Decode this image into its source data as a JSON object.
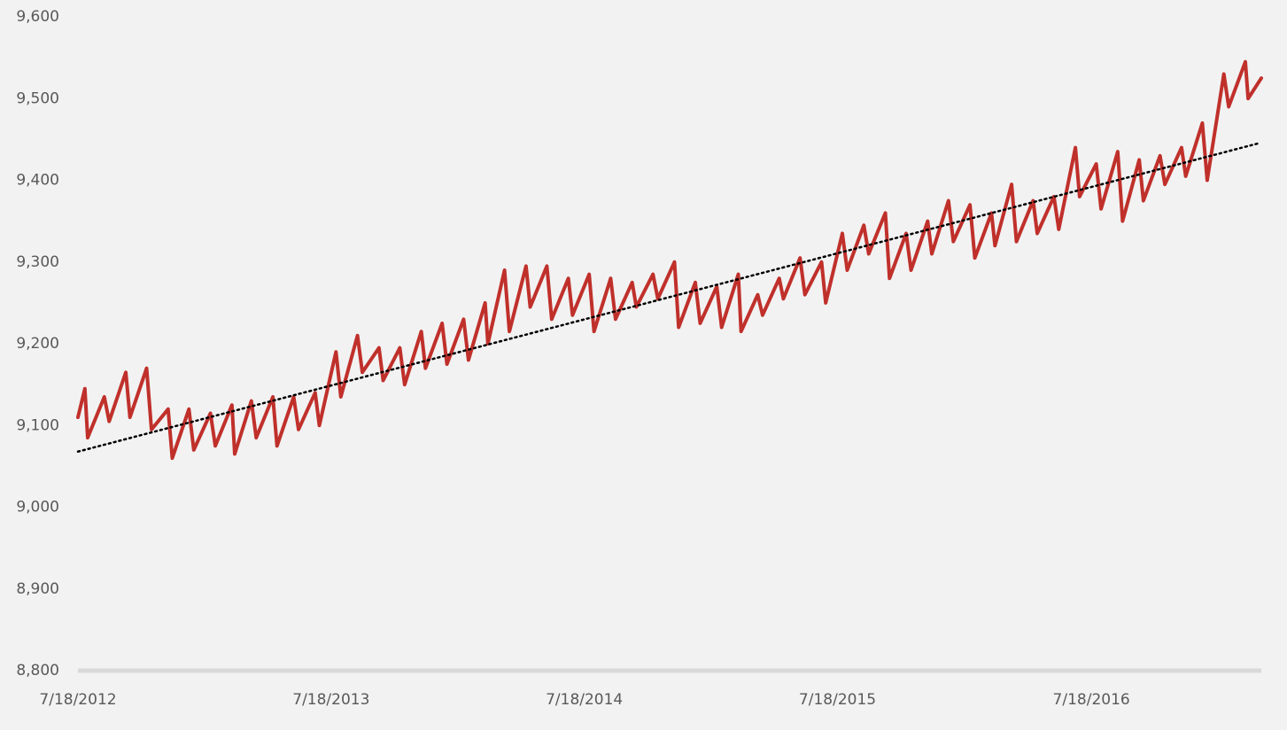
{
  "chart_data": {
    "type": "line",
    "x": [
      "2012-07-18",
      "2012-07-28",
      "2012-08-01",
      "2012-08-25",
      "2012-09-01",
      "2012-09-25",
      "2012-10-01",
      "2012-10-25",
      "2012-11-01",
      "2012-11-25",
      "2012-12-01",
      "2012-12-25",
      "2013-01-01",
      "2013-01-25",
      "2013-02-01",
      "2013-02-25",
      "2013-03-01",
      "2013-03-25",
      "2013-04-01",
      "2013-04-25",
      "2013-05-01",
      "2013-05-25",
      "2013-06-01",
      "2013-06-25",
      "2013-07-01",
      "2013-07-25",
      "2013-08-01",
      "2013-08-25",
      "2013-09-01",
      "2013-09-25",
      "2013-10-01",
      "2013-10-25",
      "2013-11-01",
      "2013-11-25",
      "2013-12-01",
      "2013-12-25",
      "2014-01-01",
      "2014-01-25",
      "2014-02-01",
      "2014-02-25",
      "2014-03-01",
      "2014-03-25",
      "2014-04-01",
      "2014-04-25",
      "2014-05-01",
      "2014-05-25",
      "2014-06-01",
      "2014-06-25",
      "2014-07-01",
      "2014-07-25",
      "2014-08-01",
      "2014-08-25",
      "2014-09-01",
      "2014-09-25",
      "2014-10-01",
      "2014-10-25",
      "2014-11-01",
      "2014-11-25",
      "2014-12-01",
      "2014-12-25",
      "2015-01-01",
      "2015-01-25",
      "2015-02-01",
      "2015-02-25",
      "2015-03-01",
      "2015-03-25",
      "2015-04-01",
      "2015-04-25",
      "2015-05-01",
      "2015-05-25",
      "2015-06-01",
      "2015-06-25",
      "2015-07-01",
      "2015-07-25",
      "2015-08-01",
      "2015-08-25",
      "2015-09-01",
      "2015-09-25",
      "2015-10-01",
      "2015-10-25",
      "2015-11-01",
      "2015-11-25",
      "2015-12-01",
      "2015-12-25",
      "2016-01-01",
      "2016-01-25",
      "2016-02-01",
      "2016-02-25",
      "2016-03-01",
      "2016-03-25",
      "2016-04-01",
      "2016-04-25",
      "2016-05-01",
      "2016-05-25",
      "2016-06-01",
      "2016-06-25",
      "2016-07-01",
      "2016-07-25",
      "2016-08-01",
      "2016-08-25",
      "2016-09-01",
      "2016-09-25",
      "2016-10-01",
      "2016-10-25",
      "2016-11-01",
      "2016-11-25",
      "2016-12-01",
      "2016-12-25",
      "2017-01-01",
      "2017-01-25",
      "2017-02-01",
      "2017-02-25",
      "2017-03-01",
      "2017-03-20"
    ],
    "series": [
      {
        "color": "#c0302b",
        "values": [
          9110,
          9145,
          9085,
          9135,
          9105,
          9165,
          9110,
          9170,
          9095,
          9120,
          9060,
          9120,
          9070,
          9115,
          9075,
          9125,
          9065,
          9130,
          9085,
          9135,
          9075,
          9135,
          9095,
          9140,
          9100,
          9190,
          9135,
          9210,
          9165,
          9195,
          9155,
          9195,
          9150,
          9215,
          9170,
          9225,
          9175,
          9230,
          9180,
          9250,
          9200,
          9290,
          9215,
          9295,
          9245,
          9295,
          9230,
          9280,
          9235,
          9285,
          9215,
          9280,
          9230,
          9275,
          9245,
          9285,
          9255,
          9300,
          9220,
          9275,
          9225,
          9270,
          9220,
          9285,
          9215,
          9260,
          9235,
          9280,
          9255,
          9305,
          9260,
          9300,
          9250,
          9335,
          9290,
          9345,
          9310,
          9360,
          9280,
          9335,
          9290,
          9350,
          9310,
          9375,
          9325,
          9370,
          9305,
          9360,
          9320,
          9395,
          9325,
          9375,
          9335,
          9380,
          9340,
          9440,
          9380,
          9420,
          9365,
          9435,
          9350,
          9425,
          9375,
          9430,
          9395,
          9440,
          9405,
          9470,
          9400,
          9530,
          9490,
          9545,
          9500,
          9525
        ]
      }
    ],
    "trendline": {
      "color": "#000000",
      "x": [
        "2012-07-18",
        "2017-03-15"
      ],
      "values": [
        9068,
        9445
      ]
    },
    "xlim": [
      "2012-07-18",
      "2017-03-20"
    ],
    "xticks": [
      {
        "value": "2012-07-18",
        "label": "7/18/2012"
      },
      {
        "value": "2013-07-18",
        "label": "7/18/2013"
      },
      {
        "value": "2014-07-18",
        "label": "7/18/2014"
      },
      {
        "value": "2015-07-18",
        "label": "7/18/2015"
      },
      {
        "value": "2016-07-18",
        "label": "7/18/2016"
      }
    ],
    "ylim": [
      8800,
      9600
    ],
    "yticks": [
      {
        "value": 8800,
        "label": "8,800"
      },
      {
        "value": 8900,
        "label": "8,900"
      },
      {
        "value": 9000,
        "label": "9,000"
      },
      {
        "value": 9100,
        "label": "9,100"
      },
      {
        "value": 9200,
        "label": "9,200"
      },
      {
        "value": 9300,
        "label": "9,300"
      },
      {
        "value": 9400,
        "label": "9,400"
      },
      {
        "value": 9500,
        "label": "9,500"
      },
      {
        "value": 9600,
        "label": "9,600"
      }
    ],
    "grid": false
  }
}
